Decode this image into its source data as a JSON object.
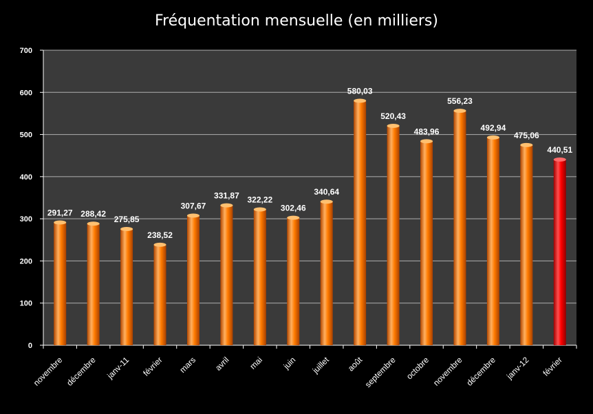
{
  "chart_data": {
    "type": "bar",
    "title": "Fréquentation mensuelle (en milliers)",
    "xlabel": "",
    "ylabel": "",
    "categories": [
      "novembre",
      "décembre",
      "janv-11",
      "février",
      "mars",
      "avril",
      "mai",
      "juin",
      "juillet",
      "août",
      "septembre",
      "octobre",
      "novembre",
      "décembre",
      "janv-12",
      "février"
    ],
    "values": [
      291.27,
      288.42,
      275.85,
      238.52,
      307.67,
      331.87,
      322.22,
      302.46,
      340.64,
      580.03,
      520.43,
      483.96,
      556.23,
      492.94,
      475.06,
      440.51
    ],
    "data_labels": [
      "291,27",
      "288,42",
      "275,85",
      "238,52",
      "307,67",
      "331,87",
      "322,22",
      "302,46",
      "340,64",
      "580,03",
      "520,43",
      "483,96",
      "556,23",
      "492,94",
      "475,06",
      "440,51"
    ],
    "y_ticks": [
      "0",
      "100",
      "200",
      "300",
      "400",
      "500",
      "600",
      "700"
    ],
    "ylim": [
      0,
      700
    ],
    "grid": true,
    "legend": "none",
    "highlight_index": 15,
    "colors": {
      "background": "#000000",
      "plot_background": "#3a3a3a",
      "gridline": "#b0b0b0",
      "bar": "#ff7b00",
      "bar_highlight": "#ff0000",
      "text": "#ffffff"
    }
  }
}
